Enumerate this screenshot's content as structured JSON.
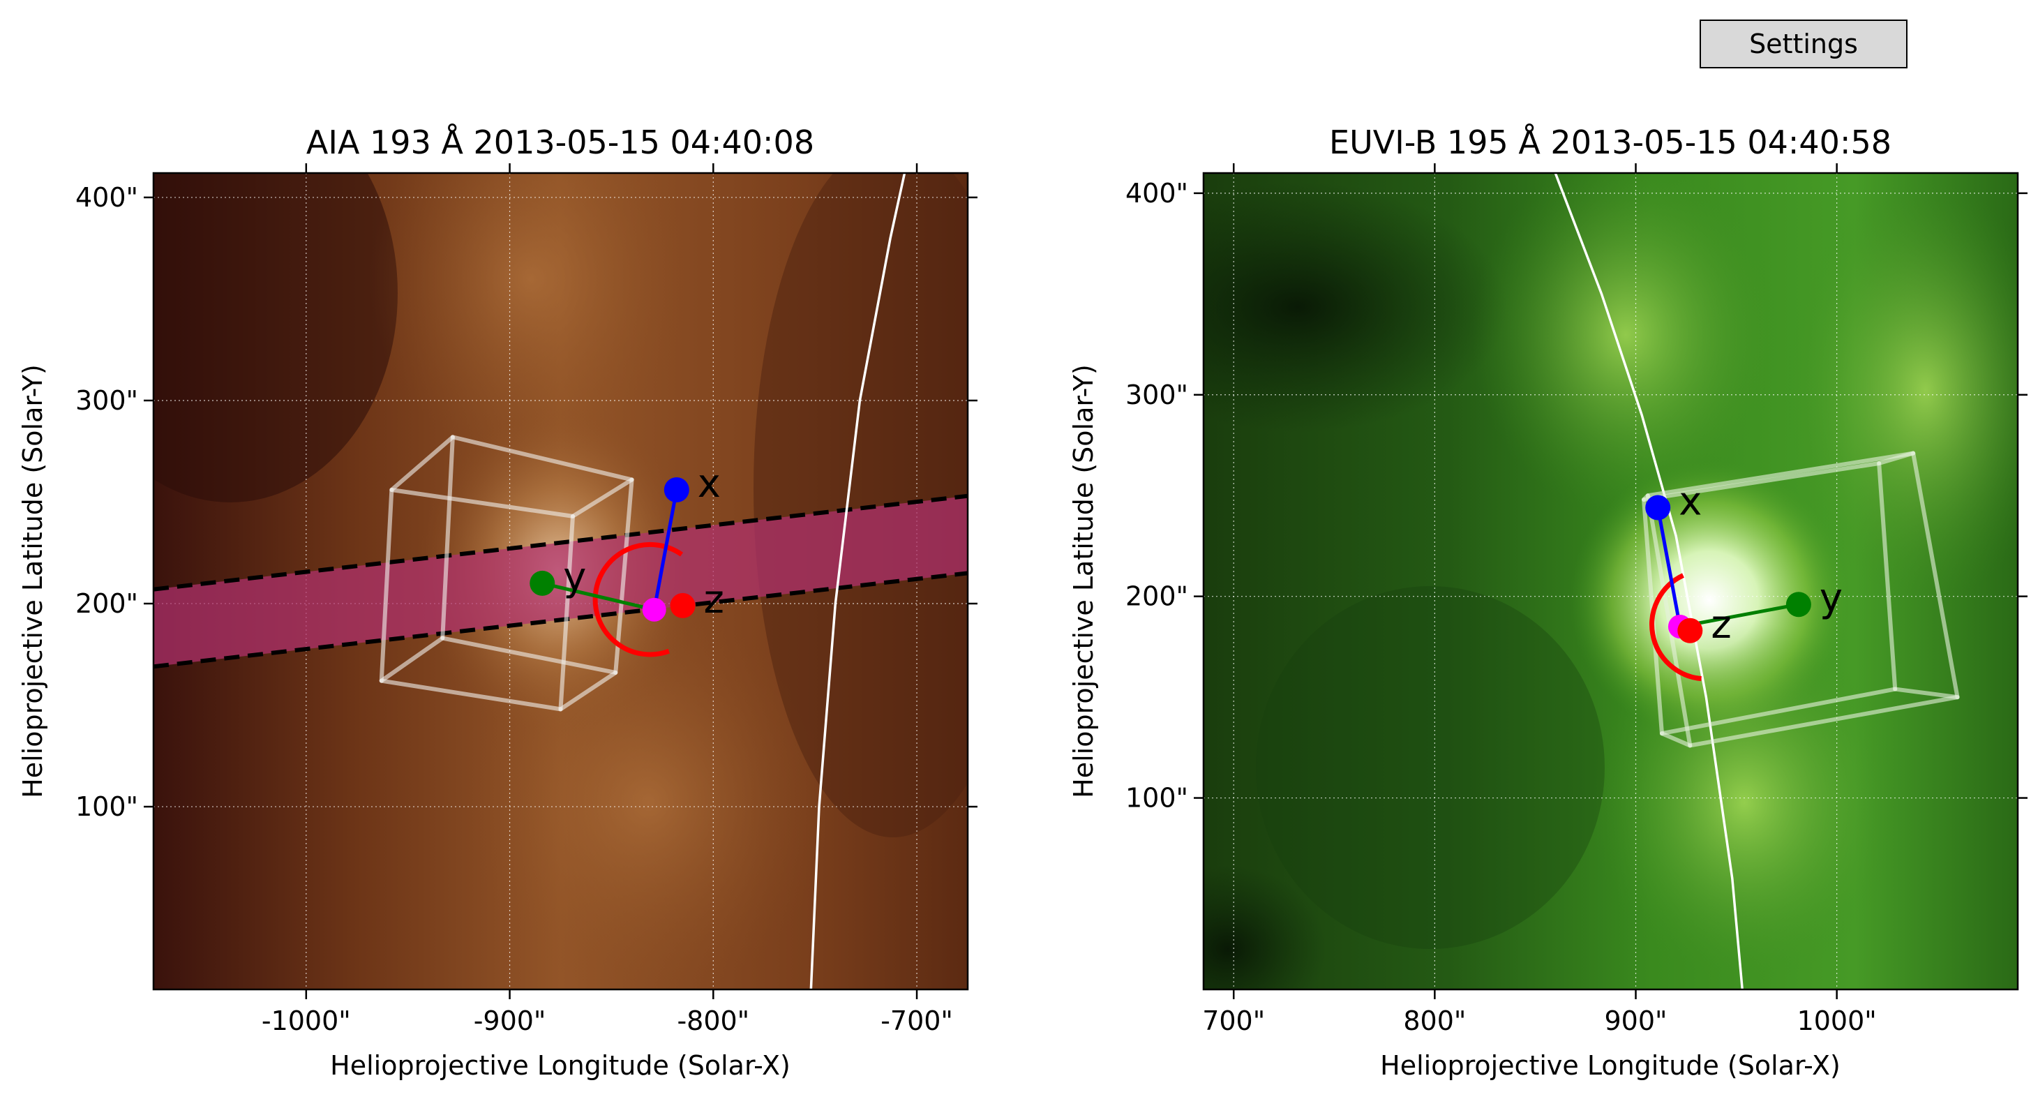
{
  "settings_button": {
    "label": "Settings"
  },
  "chart_data": [
    {
      "type": "image",
      "title": "AIA 193 Å 2013-05-15 04:40:08",
      "xlabel": "Helioprojective Longitude (Solar-X)",
      "ylabel": "Helioprojective Latitude (Solar-Y)",
      "xlim": [
        -1075,
        -675
      ],
      "ylim": [
        10,
        412
      ],
      "xticks": [
        -1000,
        -900,
        -800,
        -700
      ],
      "xtick_labels": [
        "-1000\"",
        "-900\"",
        "-800\"",
        "-700\""
      ],
      "yticks": [
        100,
        200,
        300,
        400
      ],
      "ytick_labels": [
        "100\"",
        "200\"",
        "300\"",
        "400\""
      ],
      "grid": true,
      "colormap": [
        "#2a0b0a",
        "#6b3515",
        "#a86a32",
        "#d8a96a",
        "#fff0d8"
      ],
      "limb": [
        [
          -752,
          10
        ],
        [
          -748,
          100
        ],
        [
          -740,
          200
        ],
        [
          -728,
          300
        ],
        [
          -713,
          380
        ],
        [
          -706,
          412
        ]
      ],
      "slit": {
        "upper_edge": [
          [
            -1075,
            207
          ],
          [
            -675,
            253
          ]
        ],
        "lower_edge": [
          [
            -1075,
            169
          ],
          [
            -675,
            215
          ]
        ],
        "color": "#b0306e"
      },
      "box": {
        "vertices": [
          [
            -963,
            162
          ],
          [
            -875,
            148
          ],
          [
            -869,
            243
          ],
          [
            -958,
            256
          ],
          [
            -933,
            183
          ],
          [
            -848,
            166
          ],
          [
            -840,
            261
          ],
          [
            -928,
            282
          ]
        ],
        "edges": [
          [
            0,
            1
          ],
          [
            1,
            2
          ],
          [
            2,
            3
          ],
          [
            3,
            0
          ],
          [
            4,
            5
          ],
          [
            5,
            6
          ],
          [
            6,
            7
          ],
          [
            7,
            4
          ],
          [
            0,
            4
          ],
          [
            1,
            5
          ],
          [
            2,
            6
          ],
          [
            3,
            7
          ]
        ],
        "color": "#f2f0ec"
      },
      "axes_marker": {
        "origin": [
          -829,
          197
        ],
        "x": {
          "point": [
            -818,
            256
          ],
          "label": "x",
          "color": "#0000ff"
        },
        "y": {
          "point": [
            -884,
            210
          ],
          "label": "y",
          "color": "#008000"
        },
        "z": {
          "point": [
            -815,
            199
          ],
          "label": "z",
          "color": "#ff0000"
        },
        "origin_color": "#ff00ff"
      },
      "arc": {
        "center": [
          -831,
          202
        ],
        "radius": 27,
        "start_deg": 55,
        "end_deg": 290,
        "color": "#ff0000"
      }
    },
    {
      "type": "image",
      "title": "EUVI-B 195 Å 2013-05-15 04:40:58",
      "xlabel": "Helioprojective Longitude (Solar-X)",
      "ylabel": "Helioprojective Latitude (Solar-Y)",
      "xlim": [
        685,
        1090
      ],
      "ylim": [
        5,
        410
      ],
      "xticks": [
        700,
        800,
        900,
        1000
      ],
      "xtick_labels": [
        "700\"",
        "800\"",
        "900\"",
        "1000\""
      ],
      "yticks": [
        100,
        200,
        300,
        400
      ],
      "ytick_labels": [
        "100\"",
        "200\"",
        "300\"",
        "400\""
      ],
      "grid": true,
      "colormap": [
        "#061204",
        "#1f4d12",
        "#3f8a1f",
        "#8cc93e",
        "#f2ffd8"
      ],
      "limb": [
        [
          860,
          410
        ],
        [
          883,
          350
        ],
        [
          903,
          290
        ],
        [
          920,
          230
        ],
        [
          935,
          150
        ],
        [
          948,
          60
        ],
        [
          953,
          5
        ]
      ],
      "box": {
        "vertices": [
          [
            913,
            132
          ],
          [
            1029,
            154
          ],
          [
            1021,
            266
          ],
          [
            904,
            248
          ],
          [
            927,
            126
          ],
          [
            1060,
            150
          ],
          [
            1038,
            271
          ],
          [
            906,
            250
          ]
        ],
        "edges": [
          [
            0,
            1
          ],
          [
            1,
            2
          ],
          [
            2,
            3
          ],
          [
            3,
            0
          ],
          [
            4,
            5
          ],
          [
            5,
            6
          ],
          [
            6,
            7
          ],
          [
            7,
            4
          ],
          [
            0,
            4
          ],
          [
            1,
            5
          ],
          [
            2,
            6
          ],
          [
            3,
            7
          ]
        ],
        "color": "#e6f2dd"
      },
      "axes_marker": {
        "origin": [
          922,
          185
        ],
        "x": {
          "point": [
            911,
            244
          ],
          "label": "x",
          "color": "#0000ff"
        },
        "y": {
          "point": [
            981,
            196
          ],
          "label": "y",
          "color": "#008000"
        },
        "z": {
          "point": [
            927,
            183
          ],
          "label": "z",
          "color": "#ff0000"
        },
        "origin_color": "#ff00ff"
      },
      "arc": {
        "center": [
          935,
          186
        ],
        "radius": 27,
        "start_deg": 115,
        "end_deg": 265,
        "color": "#ff0000"
      }
    }
  ]
}
